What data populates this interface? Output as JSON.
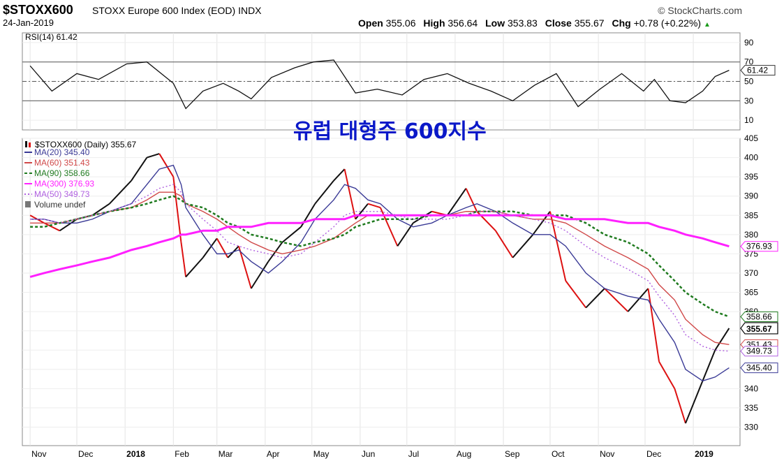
{
  "header": {
    "symbol": "$STOXX600",
    "name": "STOXX Europe 600 Index (EOD)  INDX",
    "source": "© StockCharts.com",
    "date": "24-Jan-2019",
    "open_label": "Open",
    "open": "355.06",
    "high_label": "High",
    "high": "356.64",
    "low_label": "Low",
    "low": "353.83",
    "close_label": "Close",
    "close": "355.67",
    "chg_label": "Chg",
    "chg": "+0.78 (+0.22%)"
  },
  "overlay_title": "유럽 대형주 600지수",
  "chart_data": {
    "type": "line",
    "rsi": {
      "legend": "RSI(14) 61.42",
      "last_tag": "61.42",
      "ylim": [
        0,
        100
      ],
      "ticks": [
        90,
        70,
        50,
        30,
        10
      ],
      "reference_lines": [
        70,
        50,
        30
      ],
      "x": [
        "2017-11-01",
        "2017-11-15",
        "2017-12-01",
        "2017-12-15",
        "2018-01-02",
        "2018-01-15",
        "2018-02-01",
        "2018-02-09",
        "2018-02-20",
        "2018-03-05",
        "2018-03-15",
        "2018-03-23",
        "2018-04-05",
        "2018-04-20",
        "2018-05-02",
        "2018-05-15",
        "2018-05-29",
        "2018-06-12",
        "2018-06-28",
        "2018-07-12",
        "2018-07-27",
        "2018-08-10",
        "2018-08-24",
        "2018-09-07",
        "2018-09-21",
        "2018-10-05",
        "2018-10-19",
        "2018-11-02",
        "2018-11-16",
        "2018-11-30",
        "2018-12-07",
        "2018-12-17",
        "2018-12-27",
        "2019-01-07",
        "2019-01-15",
        "2019-01-24"
      ],
      "y": [
        66,
        40,
        58,
        52,
        68,
        70,
        48,
        22,
        40,
        48,
        40,
        32,
        54,
        64,
        70,
        72,
        38,
        42,
        36,
        52,
        58,
        48,
        40,
        30,
        46,
        58,
        24,
        42,
        58,
        40,
        52,
        30,
        28,
        40,
        55,
        61.42
      ]
    },
    "price": {
      "legend_title": "$STOXX600 (Daily) 355.67",
      "ylim": [
        327,
        405
      ],
      "ticks": [
        405,
        400,
        395,
        390,
        385,
        380,
        375,
        370,
        365,
        360,
        355,
        350,
        345,
        340,
        335,
        330
      ],
      "x_labels": [
        "Nov",
        "Dec",
        "2018",
        "Feb",
        "Mar",
        "Apr",
        "May",
        "Jun",
        "Jul",
        "Aug",
        "Sep",
        "Oct",
        "Nov",
        "Dec",
        "2019"
      ],
      "x_label_dates": [
        "2017-11-01",
        "2017-12-01",
        "2018-01-01",
        "2018-02-01",
        "2018-03-01",
        "2018-04-01",
        "2018-05-01",
        "2018-06-01",
        "2018-07-01",
        "2018-08-01",
        "2018-09-01",
        "2018-10-01",
        "2018-11-01",
        "2018-12-01",
        "2019-01-01"
      ],
      "close": {
        "name": "$STOXX600",
        "color": "#000000",
        "x": [
          "2017-11-01",
          "2017-11-10",
          "2017-11-20",
          "2017-12-01",
          "2017-12-11",
          "2017-12-22",
          "2018-01-05",
          "2018-01-15",
          "2018-01-23",
          "2018-02-01",
          "2018-02-06",
          "2018-02-09",
          "2018-02-20",
          "2018-03-01",
          "2018-03-08",
          "2018-03-15",
          "2018-03-23",
          "2018-04-03",
          "2018-04-12",
          "2018-04-24",
          "2018-05-03",
          "2018-05-15",
          "2018-05-22",
          "2018-05-29",
          "2018-06-06",
          "2018-06-14",
          "2018-06-25",
          "2018-07-05",
          "2018-07-17",
          "2018-07-27",
          "2018-08-08",
          "2018-08-15",
          "2018-08-27",
          "2018-09-07",
          "2018-09-20",
          "2018-10-01",
          "2018-10-11",
          "2018-10-24",
          "2018-11-05",
          "2018-11-20",
          "2018-12-03",
          "2018-12-10",
          "2018-12-20",
          "2018-12-27",
          "2019-01-07",
          "2019-01-15",
          "2019-01-24"
        ],
        "y": [
          385,
          383,
          381,
          384,
          385,
          388,
          394,
          400,
          401,
          395,
          378,
          369,
          374,
          379,
          374,
          377,
          366,
          373,
          378,
          382,
          388,
          394,
          397,
          384,
          388,
          387,
          377,
          383,
          386,
          385,
          392,
          386,
          381,
          374,
          380,
          386,
          368,
          361,
          366,
          360,
          366,
          347,
          340,
          331,
          342,
          350,
          355.67
        ]
      },
      "series": [
        {
          "name": "MA(20) 345.40",
          "tag": "345.40",
          "color": "#3a3a96",
          "style": "solid",
          "y": [
            384,
            384,
            383,
            383,
            384,
            386,
            388,
            393,
            397,
            398,
            393,
            387,
            380,
            375,
            375,
            376,
            373,
            370,
            373,
            378,
            384,
            389,
            393,
            392,
            389,
            388,
            384,
            382,
            383,
            385,
            387,
            388,
            386,
            383,
            380,
            380,
            377,
            370,
            366,
            364,
            363,
            358,
            352,
            345,
            342,
            343,
            345.4
          ]
        },
        {
          "name": "MA(60) 351.43",
          "tag": "351.43",
          "color": "#d04848",
          "style": "solid",
          "y": [
            383,
            383,
            383,
            384,
            385,
            386,
            387,
            389,
            391,
            391,
            390,
            388,
            386,
            384,
            382,
            380,
            378,
            376,
            375,
            376,
            377,
            379,
            381,
            383,
            385,
            385,
            385,
            385,
            385,
            385,
            386,
            386,
            386,
            385,
            384,
            384,
            383,
            380,
            377,
            374,
            371,
            367,
            363,
            358,
            354,
            352,
            351.43
          ]
        },
        {
          "name": "MA(90) 358.66",
          "tag": "358.66",
          "color": "#1e7a1e",
          "style": "dashed",
          "y": [
            382,
            382,
            383,
            384,
            385,
            386,
            387,
            388,
            389,
            390,
            389,
            388,
            387,
            385,
            383,
            382,
            380,
            379,
            378,
            377,
            378,
            379,
            380,
            382,
            383,
            384,
            384,
            384,
            385,
            385,
            385,
            386,
            386,
            386,
            385,
            385,
            385,
            383,
            380,
            378,
            375,
            372,
            368,
            365,
            362,
            360,
            358.66
          ]
        },
        {
          "name": "MA(300) 376.93",
          "tag": "376.93",
          "color": "#ff20ff",
          "style": "solid",
          "y": [
            369,
            370,
            371,
            372,
            373,
            374,
            376,
            377,
            378,
            379,
            380,
            380,
            381,
            381,
            382,
            382,
            382,
            383,
            383,
            383,
            384,
            384,
            384,
            385,
            385,
            385,
            385,
            385,
            385,
            385,
            385,
            385,
            385,
            385,
            385,
            385,
            384,
            384,
            384,
            383,
            383,
            382,
            381,
            380,
            379,
            378,
            376.93
          ]
        },
        {
          "name": "MA(50) 349.73",
          "tag": "349.73",
          "color": "#b060e0",
          "style": "dotted",
          "y": [
            384,
            384,
            383,
            384,
            385,
            386,
            388,
            390,
            392,
            393,
            391,
            388,
            384,
            381,
            378,
            377,
            376,
            375,
            374,
            375,
            378,
            382,
            385,
            386,
            386,
            386,
            385,
            384,
            384,
            384,
            385,
            386,
            386,
            385,
            384,
            383,
            381,
            377,
            374,
            371,
            368,
            364,
            359,
            354,
            351,
            350,
            349.73
          ]
        }
      ],
      "volume_legend": "Volume undef",
      "close_tag": "355.67"
    }
  }
}
